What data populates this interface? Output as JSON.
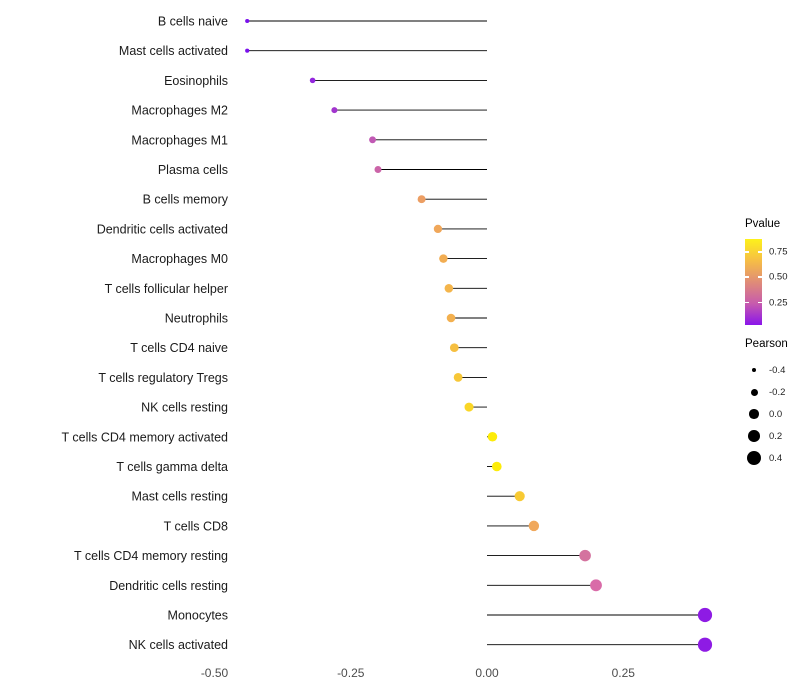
{
  "chart_data": {
    "type": "scatter",
    "subtype": "lollipop",
    "title": "",
    "xlabel": "",
    "ylabel": "",
    "background": "#FFFFFF",
    "stem_color": "#000000",
    "xlim": [
      -0.55,
      0.47
    ],
    "x_ticks": [
      "-0.50",
      "-0.25",
      "0.00",
      "0.25"
    ],
    "x_tick_values": [
      -0.5,
      -0.25,
      0.0,
      0.25
    ],
    "categories": [
      "B cells naive",
      "Mast cells activated",
      "Eosinophils",
      "Macrophages M2",
      "Macrophages M1",
      "Plasma cells",
      "B cells memory",
      "Dendritic cells activated",
      "Macrophages M0",
      "T cells follicular helper",
      "Neutrophils",
      "T cells CD4 naive",
      "T cells regulatory Tregs",
      "NK cells resting",
      "T cells CD4 memory activated",
      "T cells gamma delta",
      "Mast cells resting",
      "T cells CD8",
      "T cells CD4 memory resting",
      "Dendritic cells resting",
      "Monocytes",
      "NK cells activated"
    ],
    "values": [
      -0.44,
      -0.44,
      -0.32,
      -0.28,
      -0.21,
      -0.2,
      -0.12,
      -0.09,
      -0.08,
      -0.07,
      -0.066,
      -0.06,
      -0.053,
      -0.033,
      0.01,
      0.018,
      0.06,
      0.086,
      0.18,
      0.2,
      0.4,
      0.4
    ],
    "point_colors": [
      "#7A11EC",
      "#7A11EC",
      "#9327DE",
      "#A235CE",
      "#C159B4",
      "#CB64A8",
      "#EC9E63",
      "#F0A75A",
      "#F2AD52",
      "#F4B54B",
      "#F3B04F",
      "#F6BF40",
      "#F7C737",
      "#FAD626",
      "#FDEC09",
      "#FDEC09",
      "#F8CA33",
      "#F0A85C",
      "#D4739F",
      "#D96BA8",
      "#8E1BE4",
      "#8E1BE4"
    ],
    "legend_pvalue": {
      "title": "Pvalue",
      "tick_labels": [
        "0.75",
        "0.50",
        "0.25"
      ],
      "gradient": [
        "#FDF11B",
        "#F6BE45",
        "#E08C77",
        "#C75BAD",
        "#8A15EA"
      ]
    },
    "legend_pearson": {
      "title": "Pearson",
      "labels": [
        "-0.4",
        "-0.2",
        "0.0",
        "0.2",
        "0.4"
      ],
      "sizes": [
        -0.4,
        -0.2,
        0.0,
        0.2,
        0.4
      ]
    },
    "legend_position": "right",
    "grid": false
  }
}
